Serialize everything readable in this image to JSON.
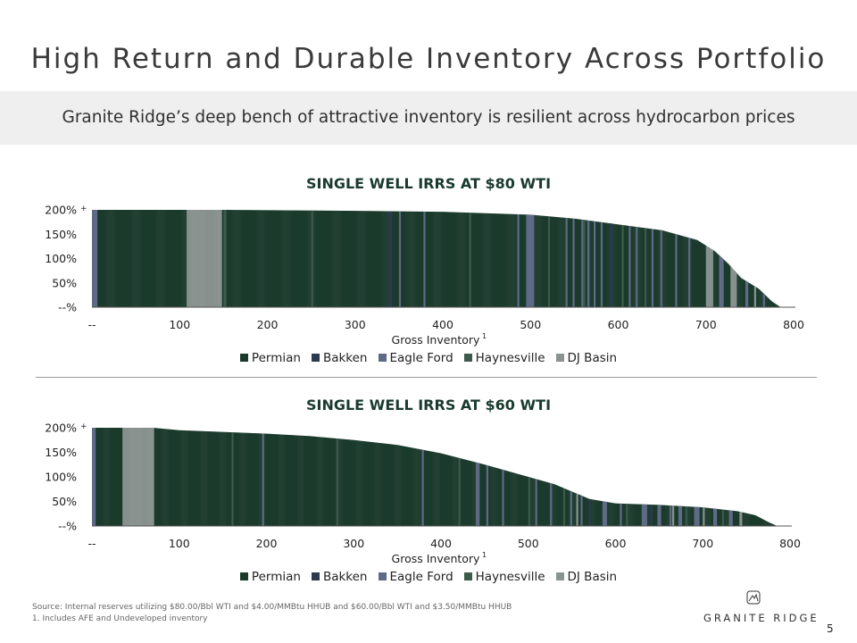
{
  "page": {
    "title": "High Return and Durable Inventory Across Portfolio",
    "subtitle": "Granite Ridge’s deep bench of attractive inventory is resilient across hydrocarbon prices",
    "footer_source": "Source: Internal reserves utilizing $80.00/Bbl WTI and $4.00/MMBtu HHUB and $60.00/Bbl WTI and $3.50/MMBtu HHUB",
    "footer_note": "1.  Includes AFE and Undeveloped inventory",
    "logo_text": "GRANITE RIDGE",
    "page_number": "5"
  },
  "colors": {
    "Permian": "#1b3a2c",
    "Bakken": "#2b3a4e",
    "Eagle Ford": "#5f6b86",
    "Haynesville": "#3e5a4c",
    "DJ Basin": "#8a9390"
  },
  "legend": [
    "Permian",
    "Bakken",
    "Eagle Ford",
    "Haynesville",
    "DJ Basin"
  ],
  "chart_data": [
    {
      "type": "bar",
      "title": "SINGLE WELL IRRS AT $80 WTI",
      "xlabel": "Gross Inventory",
      "xlabel_sup": "1",
      "x_tick_labels": [
        "--",
        "100",
        "200",
        "300",
        "400",
        "500",
        "600",
        "700",
        "800"
      ],
      "y_tick_labels": [
        "--%",
        "50%",
        "100%",
        "150%",
        "200%"
      ],
      "y_top_marker": "+",
      "xlim": [
        0,
        800
      ],
      "ylim": [
        0,
        200
      ],
      "total_wells": 785,
      "irr_curve": [
        [
          0,
          200
        ],
        [
          150,
          200
        ],
        [
          300,
          198
        ],
        [
          400,
          196
        ],
        [
          500,
          190
        ],
        [
          550,
          182
        ],
        [
          600,
          170
        ],
        [
          650,
          158
        ],
        [
          690,
          138
        ],
        [
          710,
          115
        ],
        [
          725,
          90
        ],
        [
          740,
          60
        ],
        [
          760,
          38
        ],
        [
          775,
          12
        ],
        [
          785,
          0
        ]
      ],
      "series": [
        {
          "name": "Permian",
          "segments": [
            [
              0,
              785
            ]
          ]
        },
        {
          "name": "Bakken",
          "segments": [
            [
              338,
              342
            ],
            [
              590,
              593
            ],
            [
              700,
              703
            ]
          ]
        },
        {
          "name": "Eagle Ford",
          "segments": [
            [
              0,
              6
            ],
            [
              122,
              124
            ],
            [
              350,
              352
            ],
            [
              378,
              380
            ],
            [
              485,
              487
            ],
            [
              495,
              504
            ],
            [
              540,
              542
            ],
            [
              548,
              550
            ],
            [
              558,
              560
            ],
            [
              565,
              567
            ],
            [
              572,
              574
            ],
            [
              580,
              582
            ],
            [
              612,
              614
            ],
            [
              620,
              622
            ],
            [
              638,
              640
            ],
            [
              648,
              650
            ],
            [
              665,
              667
            ],
            [
              680,
              682
            ],
            [
              715,
              720
            ],
            [
              745,
              748
            ],
            [
              765,
              767
            ]
          ]
        },
        {
          "name": "Haynesville",
          "segments": [
            [
              150,
              153
            ],
            [
              250,
              252
            ],
            [
              430,
              432
            ],
            [
              520,
              522
            ],
            [
              560,
              562
            ],
            [
              604,
              606
            ],
            [
              630,
              632
            ]
          ]
        },
        {
          "name": "DJ Basin",
          "segments": [
            [
              108,
              148
            ],
            [
              700,
              708
            ],
            [
              728,
              735
            ],
            [
              755,
              757
            ]
          ]
        }
      ]
    },
    {
      "type": "bar",
      "title": "SINGLE WELL IRRS AT $60 WTI",
      "xlabel": "Gross Inventory",
      "xlabel_sup": "1",
      "x_tick_labels": [
        "--",
        "100",
        "200",
        "300",
        "400",
        "500",
        "600",
        "700",
        "800"
      ],
      "y_tick_labels": [
        "--%",
        "50%",
        "100%",
        "150%",
        "200%"
      ],
      "y_top_marker": "+",
      "xlim": [
        0,
        800
      ],
      "ylim": [
        0,
        200
      ],
      "total_wells": 785,
      "irr_curve": [
        [
          0,
          200
        ],
        [
          70,
          200
        ],
        [
          100,
          195
        ],
        [
          200,
          188
        ],
        [
          250,
          183
        ],
        [
          300,
          175
        ],
        [
          350,
          165
        ],
        [
          400,
          148
        ],
        [
          450,
          125
        ],
        [
          500,
          100
        ],
        [
          530,
          85
        ],
        [
          550,
          70
        ],
        [
          570,
          55
        ],
        [
          600,
          46
        ],
        [
          650,
          43
        ],
        [
          700,
          38
        ],
        [
          740,
          30
        ],
        [
          760,
          22
        ],
        [
          775,
          8
        ],
        [
          785,
          0
        ]
      ],
      "series": [
        {
          "name": "Permian",
          "segments": [
            [
              0,
              785
            ]
          ]
        },
        {
          "name": "Bakken",
          "segments": [
            [
              570,
              572
            ],
            [
              640,
              642
            ]
          ]
        },
        {
          "name": "Eagle Ford",
          "segments": [
            [
              0,
              4
            ],
            [
              195,
              197
            ],
            [
              378,
              380
            ],
            [
              440,
              444
            ],
            [
              452,
              454
            ],
            [
              470,
              472
            ],
            [
              508,
              510
            ],
            [
              525,
              527
            ],
            [
              548,
              550
            ],
            [
              560,
              562
            ],
            [
              585,
              590
            ],
            [
              605,
              607
            ],
            [
              630,
              636
            ],
            [
              648,
              652
            ],
            [
              662,
              664
            ],
            [
              672,
              676
            ],
            [
              690,
              696
            ],
            [
              712,
              716
            ],
            [
              730,
              734
            ]
          ]
        },
        {
          "name": "Haynesville",
          "segments": [
            [
              160,
              162
            ],
            [
              280,
              282
            ],
            [
              420,
              422
            ],
            [
              500,
              502
            ],
            [
              540,
              542
            ],
            [
              612,
              614
            ],
            [
              680,
              682
            ],
            [
              722,
              724
            ]
          ]
        },
        {
          "name": "DJ Basin",
          "segments": [
            [
              35,
              71
            ],
            [
              555,
              557
            ],
            [
              665,
              667
            ],
            [
              700,
              702
            ],
            [
              742,
              745
            ]
          ]
        }
      ]
    }
  ]
}
